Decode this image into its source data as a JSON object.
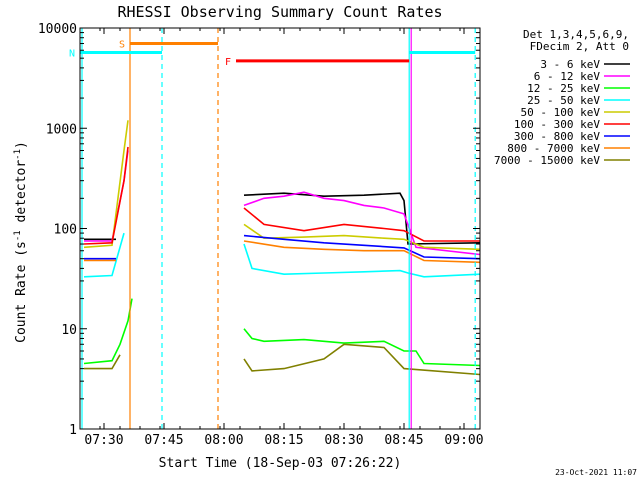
{
  "chart_data": {
    "type": "line",
    "title": "RHESSI Observing Summary Count Rates",
    "xlabel": "Start Time (18-Sep-03 07:26:22)",
    "ylabel": "Count Rate (s",
    "ylabel_sup1": "-1",
    "ylabel_mid": " detector",
    "ylabel_sup2": "-1",
    "ylabel_end": ")",
    "y_scale": "log",
    "ylim": [
      1,
      10000
    ],
    "xlim_minutes": [
      -6,
      94
    ],
    "x_ticks": [
      {
        "t": 0,
        "label": "07:30"
      },
      {
        "t": 15,
        "label": "07:45"
      },
      {
        "t": 30,
        "label": "08:00"
      },
      {
        "t": 45,
        "label": "08:15"
      },
      {
        "t": 60,
        "label": "08:30"
      },
      {
        "t": 75,
        "label": "08:45"
      },
      {
        "t": 90,
        "label": "09:00"
      }
    ],
    "y_ticks": [
      {
        "v": 1,
        "label": "1"
      },
      {
        "v": 10,
        "label": "10"
      },
      {
        "v": 100,
        "label": "100"
      },
      {
        "v": 1000,
        "label": "1000"
      },
      {
        "v": 10000,
        "label": "10000"
      }
    ],
    "legend_header": [
      "Det 1,3,4,5,6,9,",
      "FDecim 2, Att 0"
    ],
    "legend_position": "right",
    "series": [
      {
        "name": "3 - 6 keV",
        "color": "#000000",
        "segments": [
          [
            [
              -5,
              78
            ],
            [
              3,
              78
            ]
          ],
          [
            [
              35,
              215
            ],
            [
              45,
              225
            ],
            [
              55,
              210
            ],
            [
              65,
              215
            ],
            [
              74,
              225
            ],
            [
              75,
              190
            ],
            [
              76,
              70
            ],
            [
              94,
              72
            ]
          ]
        ]
      },
      {
        "name": "6 - 12 keV",
        "color": "#ff00ff",
        "segments": [
          [
            [
              -5,
              75
            ],
            [
              2,
              75
            ],
            [
              5,
              300
            ],
            [
              6,
              600
            ]
          ],
          [
            [
              35,
              170
            ],
            [
              40,
              200
            ],
            [
              45,
              210
            ],
            [
              50,
              230
            ],
            [
              55,
              200
            ],
            [
              60,
              190
            ],
            [
              65,
              170
            ],
            [
              70,
              160
            ],
            [
              75,
              140
            ],
            [
              78,
              65
            ],
            [
              94,
              55
            ]
          ]
        ]
      },
      {
        "name": "12 - 25 keV",
        "color": "#00ff00",
        "segments": [
          [
            [
              -5,
              4.5
            ],
            [
              2,
              4.8
            ],
            [
              4,
              7
            ],
            [
              6,
              12
            ],
            [
              7,
              20
            ]
          ],
          [
            [
              35,
              10
            ],
            [
              37,
              8
            ],
            [
              40,
              7.5
            ],
            [
              50,
              7.8
            ],
            [
              60,
              7.2
            ],
            [
              70,
              7.5
            ],
            [
              75,
              6
            ],
            [
              78,
              6
            ],
            [
              80,
              4.5
            ],
            [
              94,
              4.3
            ]
          ]
        ]
      },
      {
        "name": "25 - 50 keV",
        "color": "#00ffff",
        "segments": [
          [
            [
              -5,
              33
            ],
            [
              2,
              34
            ],
            [
              5,
              90
            ]
          ],
          [
            [
              35,
              70
            ],
            [
              37,
              40
            ],
            [
              45,
              35
            ],
            [
              55,
              36
            ],
            [
              65,
              37
            ],
            [
              74,
              38
            ],
            [
              76,
              36
            ],
            [
              80,
              33
            ],
            [
              94,
              35
            ]
          ]
        ]
      },
      {
        "name": "50 - 100 keV",
        "color": "#cccc00",
        "segments": [
          [
            [
              -5,
              65
            ],
            [
              2,
              68
            ],
            [
              5,
              600
            ],
            [
              6,
              1200
            ]
          ],
          [
            [
              35,
              110
            ],
            [
              40,
              80
            ],
            [
              50,
              82
            ],
            [
              60,
              85
            ],
            [
              70,
              80
            ],
            [
              75,
              78
            ],
            [
              80,
              65
            ],
            [
              94,
              62
            ]
          ]
        ]
      },
      {
        "name": "100 - 300 keV",
        "color": "#ff0000",
        "segments": [
          [
            [
              -5,
              70
            ],
            [
              2,
              72
            ],
            [
              5,
              300
            ],
            [
              6,
              650
            ]
          ],
          [
            [
              35,
              160
            ],
            [
              40,
              110
            ],
            [
              50,
              95
            ],
            [
              60,
              110
            ],
            [
              70,
              100
            ],
            [
              75,
              95
            ],
            [
              80,
              75
            ],
            [
              94,
              75
            ]
          ]
        ]
      },
      {
        "name": "300 - 800 keV",
        "color": "#0000ff",
        "segments": [
          [
            [
              -5,
              50
            ],
            [
              3,
              50
            ]
          ],
          [
            [
              35,
              85
            ],
            [
              45,
              78
            ],
            [
              55,
              72
            ],
            [
              65,
              68
            ],
            [
              75,
              64
            ],
            [
              80,
              52
            ],
            [
              94,
              50
            ]
          ]
        ]
      },
      {
        "name": "800 - 7000 keV",
        "color": "#ff8000",
        "segments": [
          [
            [
              -5,
              48
            ],
            [
              3,
              48
            ]
          ],
          [
            [
              35,
              75
            ],
            [
              45,
              65
            ],
            [
              55,
              62
            ],
            [
              65,
              60
            ],
            [
              75,
              60
            ],
            [
              80,
              48
            ],
            [
              94,
              46
            ]
          ]
        ]
      },
      {
        "name": "7000 - 15000 keV",
        "color": "#808000",
        "segments": [
          [
            [
              -5,
              4
            ],
            [
              2,
              4
            ],
            [
              4,
              5.5
            ]
          ],
          [
            [
              35,
              5
            ],
            [
              37,
              3.8
            ],
            [
              45,
              4
            ],
            [
              55,
              5
            ],
            [
              60,
              7
            ],
            [
              70,
              6.5
            ],
            [
              75,
              4
            ],
            [
              94,
              3.5
            ]
          ]
        ]
      }
    ],
    "vertical_markers": [
      {
        "t": 6.5,
        "color": "#ff8000",
        "style": "solid"
      },
      {
        "t": 14.5,
        "color": "#00ffff",
        "style": "dashed"
      },
      {
        "t": 28.5,
        "color": "#ff8000",
        "style": "dashed"
      },
      {
        "t": -5.5,
        "color": "#00ffff",
        "style": "solid"
      },
      {
        "t": 76.3,
        "color": "#00ffff",
        "style": "solid"
      },
      {
        "t": 76.8,
        "color": "#ff00ff",
        "style": "solid"
      },
      {
        "t": 92.8,
        "color": "#00ffff",
        "style": "dashed"
      }
    ],
    "flag_bars": [
      {
        "label": "S",
        "t0": 6.5,
        "t1": 28.5,
        "y": 7000,
        "color": "#ff8000"
      },
      {
        "label": "N",
        "t0": -6,
        "t1": 14.5,
        "y": 5700,
        "color": "#00ffff"
      },
      {
        "label": "F",
        "t0": 33,
        "t1": 76.3,
        "y": 4700,
        "color": "#ff0000"
      },
      {
        "label": "",
        "t0": 76.3,
        "t1": 92.8,
        "y": 5700,
        "color": "#00ffff"
      }
    ]
  },
  "timestamp": "23-Oct-2021 11:07"
}
